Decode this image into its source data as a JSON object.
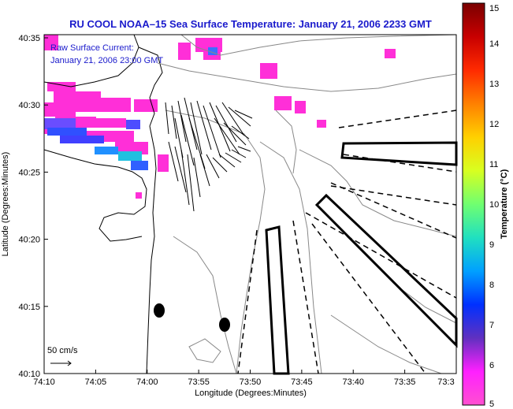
{
  "title": "RU COOL  NOAA–15  Sea Surface Temperature:  January 21, 2006 2233 GMT",
  "annotation": {
    "line1": "Raw Surface Current:",
    "line2": "January 21, 2006 23:00 GMT"
  },
  "scale_label": "50 cm/s",
  "x_axis": {
    "label": "Longitude (Degrees:Minutes)",
    "ticks": [
      "74:10",
      "74:05",
      "74:00",
      "73:55",
      "73:50",
      "73:45",
      "73:40",
      "73:35",
      "73:3"
    ]
  },
  "y_axis": {
    "label": "Latitude (Degrees:Minutes)",
    "ticks": [
      "40:35",
      "40:30",
      "40:25",
      "40:20",
      "40:15",
      "40:10"
    ]
  },
  "colorbar": {
    "label": "Temperature (°C)",
    "ticks": [
      "15",
      "14",
      "13",
      "12",
      "11",
      "10",
      "9",
      "8",
      "7",
      "6",
      "5"
    ],
    "colors": [
      "#7a0000",
      "#c80000",
      "#ff2a00",
      "#ff8000",
      "#ffd000",
      "#d8ff20",
      "#70ff70",
      "#20e0c0",
      "#00a0ff",
      "#0030ff",
      "#6030c0",
      "#ff20ff",
      "#ff50d0"
    ]
  },
  "land_color": "#ffffff",
  "sst_color": "#ff2fd8"
}
